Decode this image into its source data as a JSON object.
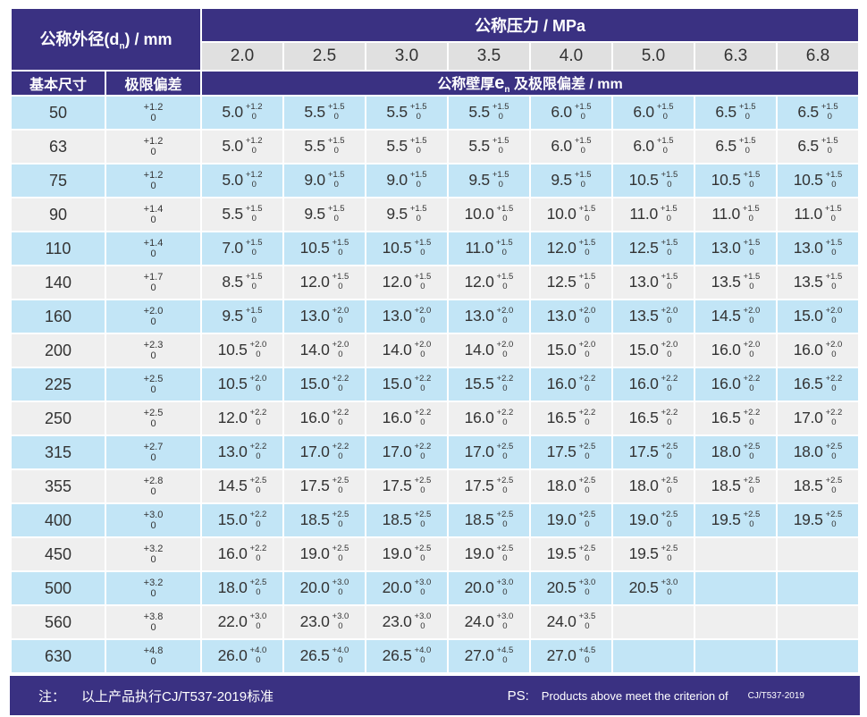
{
  "colors": {
    "header_purple": "#3a3182",
    "row_blue": "#c2e5f6",
    "row_gray": "#efefef",
    "pressure_gray": "#e0e0e0"
  },
  "header": {
    "outer_diameter": {
      "prefix": "公称外径(d",
      "sub": "n",
      "suffix": ") / mm"
    },
    "pressure_title": "公称压力 / MPa",
    "pressure_values": [
      "2.0",
      "2.5",
      "3.0",
      "3.5",
      "4.0",
      "5.0",
      "6.3",
      "6.8"
    ],
    "basic_size": "基本尺寸",
    "tolerance": "极限偏差",
    "wall_thickness": {
      "prefix": "公称壁厚",
      "symbol": "e",
      "sub": "n",
      "suffix": " 及极限偏差 / mm"
    }
  },
  "rows": [
    {
      "dn": "50",
      "tol": [
        "+1.2",
        "0"
      ],
      "cells": [
        [
          "5.0",
          "+1.2",
          "0"
        ],
        [
          "5.5",
          "+1.5",
          "0"
        ],
        [
          "5.5",
          "+1.5",
          "0"
        ],
        [
          "5.5",
          "+1.5",
          "0"
        ],
        [
          "6.0",
          "+1.5",
          "0"
        ],
        [
          "6.0",
          "+1.5",
          "0"
        ],
        [
          "6.5",
          "+1.5",
          "0"
        ],
        [
          "6.5",
          "+1.5",
          "0"
        ]
      ]
    },
    {
      "dn": "63",
      "tol": [
        "+1.2",
        "0"
      ],
      "cells": [
        [
          "5.0",
          "+1.2",
          "0"
        ],
        [
          "5.5",
          "+1.5",
          "0"
        ],
        [
          "5.5",
          "+1.5",
          "0"
        ],
        [
          "5.5",
          "+1.5",
          "0"
        ],
        [
          "6.0",
          "+1.5",
          "0"
        ],
        [
          "6.0",
          "+1.5",
          "0"
        ],
        [
          "6.5",
          "+1.5",
          "0"
        ],
        [
          "6.5",
          "+1.5",
          "0"
        ]
      ]
    },
    {
      "dn": "75",
      "tol": [
        "+1.2",
        "0"
      ],
      "cells": [
        [
          "5.0",
          "+1.2",
          "0"
        ],
        [
          "9.0",
          "+1.5",
          "0"
        ],
        [
          "9.0",
          "+1.5",
          "0"
        ],
        [
          "9.5",
          "+1.5",
          "0"
        ],
        [
          "9.5",
          "+1.5",
          "0"
        ],
        [
          "10.5",
          "+1.5",
          "0"
        ],
        [
          "10.5",
          "+1.5",
          "0"
        ],
        [
          "10.5",
          "+1.5",
          "0"
        ]
      ]
    },
    {
      "dn": "90",
      "tol": [
        "+1.4",
        "0"
      ],
      "cells": [
        [
          "5.5",
          "+1.5",
          "0"
        ],
        [
          "9.5",
          "+1.5",
          "0"
        ],
        [
          "9.5",
          "+1.5",
          "0"
        ],
        [
          "10.0",
          "+1.5",
          "0"
        ],
        [
          "10.0",
          "+1.5",
          "0"
        ],
        [
          "11.0",
          "+1.5",
          "0"
        ],
        [
          "11.0",
          "+1.5",
          "0"
        ],
        [
          "11.0",
          "+1.5",
          "0"
        ]
      ]
    },
    {
      "dn": "110",
      "tol": [
        "+1.4",
        "0"
      ],
      "cells": [
        [
          "7.0",
          "+1.5",
          "0"
        ],
        [
          "10.5",
          "+1.5",
          "0"
        ],
        [
          "10.5",
          "+1.5",
          "0"
        ],
        [
          "11.0",
          "+1.5",
          "0"
        ],
        [
          "12.0",
          "+1.5",
          "0"
        ],
        [
          "12.5",
          "+1.5",
          "0"
        ],
        [
          "13.0",
          "+1.5",
          "0"
        ],
        [
          "13.0",
          "+1.5",
          "0"
        ]
      ]
    },
    {
      "dn": "140",
      "tol": [
        "+1.7",
        "0"
      ],
      "cells": [
        [
          "8.5",
          "+1.5",
          "0"
        ],
        [
          "12.0",
          "+1.5",
          "0"
        ],
        [
          "12.0",
          "+1.5",
          "0"
        ],
        [
          "12.0",
          "+1.5",
          "0"
        ],
        [
          "12.5",
          "+1.5",
          "0"
        ],
        [
          "13.0",
          "+1.5",
          "0"
        ],
        [
          "13.5",
          "+1.5",
          "0"
        ],
        [
          "13.5",
          "+1.5",
          "0"
        ]
      ]
    },
    {
      "dn": "160",
      "tol": [
        "+2.0",
        "0"
      ],
      "cells": [
        [
          "9.5",
          "+1.5",
          "0"
        ],
        [
          "13.0",
          "+2.0",
          "0"
        ],
        [
          "13.0",
          "+2.0",
          "0"
        ],
        [
          "13.0",
          "+2.0",
          "0"
        ],
        [
          "13.0",
          "+2.0",
          "0"
        ],
        [
          "13.5",
          "+2.0",
          "0"
        ],
        [
          "14.5",
          "+2.0",
          "0"
        ],
        [
          "15.0",
          "+2.0",
          "0"
        ]
      ]
    },
    {
      "dn": "200",
      "tol": [
        "+2.3",
        "0"
      ],
      "cells": [
        [
          "10.5",
          "+2.0",
          "0"
        ],
        [
          "14.0",
          "+2.0",
          "0"
        ],
        [
          "14.0",
          "+2.0",
          "0"
        ],
        [
          "14.0",
          "+2.0",
          "0"
        ],
        [
          "15.0",
          "+2.0",
          "0"
        ],
        [
          "15.0",
          "+2.0",
          "0"
        ],
        [
          "16.0",
          "+2.0",
          "0"
        ],
        [
          "16.0",
          "+2.0",
          "0"
        ]
      ]
    },
    {
      "dn": "225",
      "tol": [
        "+2.5",
        "0"
      ],
      "cells": [
        [
          "10.5",
          "+2.0",
          "0"
        ],
        [
          "15.0",
          "+2.2",
          "0"
        ],
        [
          "15.0",
          "+2.2",
          "0"
        ],
        [
          "15.5",
          "+2.2",
          "0"
        ],
        [
          "16.0",
          "+2.2",
          "0"
        ],
        [
          "16.0",
          "+2.2",
          "0"
        ],
        [
          "16.0",
          "+2.2",
          "0"
        ],
        [
          "16.5",
          "+2.2",
          "0"
        ]
      ]
    },
    {
      "dn": "250",
      "tol": [
        "+2.5",
        "0"
      ],
      "cells": [
        [
          "12.0",
          "+2.2",
          "0"
        ],
        [
          "16.0",
          "+2.2",
          "0"
        ],
        [
          "16.0",
          "+2.2",
          "0"
        ],
        [
          "16.0",
          "+2.2",
          "0"
        ],
        [
          "16.5",
          "+2.2",
          "0"
        ],
        [
          "16.5",
          "+2.2",
          "0"
        ],
        [
          "16.5",
          "+2.2",
          "0"
        ],
        [
          "17.0",
          "+2.2",
          "0"
        ]
      ]
    },
    {
      "dn": "315",
      "tol": [
        "+2.7",
        "0"
      ],
      "cells": [
        [
          "13.0",
          "+2.2",
          "0"
        ],
        [
          "17.0",
          "+2.2",
          "0"
        ],
        [
          "17.0",
          "+2.2",
          "0"
        ],
        [
          "17.0",
          "+2.5",
          "0"
        ],
        [
          "17.5",
          "+2.5",
          "0"
        ],
        [
          "17.5",
          "+2.5",
          "0"
        ],
        [
          "18.0",
          "+2.5",
          "0"
        ],
        [
          "18.0",
          "+2.5",
          "0"
        ]
      ]
    },
    {
      "dn": "355",
      "tol": [
        "+2.8",
        "0"
      ],
      "cells": [
        [
          "14.5",
          "+2.5",
          "0"
        ],
        [
          "17.5",
          "+2.5",
          "0"
        ],
        [
          "17.5",
          "+2.5",
          "0"
        ],
        [
          "17.5",
          "+2.5",
          "0"
        ],
        [
          "18.0",
          "+2.5",
          "0"
        ],
        [
          "18.0",
          "+2.5",
          "0"
        ],
        [
          "18.5",
          "+2.5",
          "0"
        ],
        [
          "18.5",
          "+2.5",
          "0"
        ]
      ]
    },
    {
      "dn": "400",
      "tol": [
        "+3.0",
        "0"
      ],
      "cells": [
        [
          "15.0",
          "+2.2",
          "0"
        ],
        [
          "18.5",
          "+2.5",
          "0"
        ],
        [
          "18.5",
          "+2.5",
          "0"
        ],
        [
          "18.5",
          "+2.5",
          "0"
        ],
        [
          "19.0",
          "+2.5",
          "0"
        ],
        [
          "19.0",
          "+2.5",
          "0"
        ],
        [
          "19.5",
          "+2.5",
          "0"
        ],
        [
          "19.5",
          "+2.5",
          "0"
        ]
      ]
    },
    {
      "dn": "450",
      "tol": [
        "+3.2",
        "0"
      ],
      "cells": [
        [
          "16.0",
          "+2.2",
          "0"
        ],
        [
          "19.0",
          "+2.5",
          "0"
        ],
        [
          "19.0",
          "+2.5",
          "0"
        ],
        [
          "19.0",
          "+2.5",
          "0"
        ],
        [
          "19.5",
          "+2.5",
          "0"
        ],
        [
          "19.5",
          "+2.5",
          "0"
        ],
        null,
        null
      ]
    },
    {
      "dn": "500",
      "tol": [
        "+3.2",
        "0"
      ],
      "cells": [
        [
          "18.0",
          "+2.5",
          "0"
        ],
        [
          "20.0",
          "+3.0",
          "0"
        ],
        [
          "20.0",
          "+3.0",
          "0"
        ],
        [
          "20.0",
          "+3.0",
          "0"
        ],
        [
          "20.5",
          "+3.0",
          "0"
        ],
        [
          "20.5",
          "+3.0",
          "0"
        ],
        null,
        null
      ]
    },
    {
      "dn": "560",
      "tol": [
        "+3.8",
        "0"
      ],
      "cells": [
        [
          "22.0",
          "+3.0",
          "0"
        ],
        [
          "23.0",
          "+3.0",
          "0"
        ],
        [
          "23.0",
          "+3.0",
          "0"
        ],
        [
          "24.0",
          "+3.0",
          "0"
        ],
        [
          "24.0",
          "+3.5",
          "0"
        ],
        null,
        null,
        null
      ]
    },
    {
      "dn": "630",
      "tol": [
        "+4.8",
        "0"
      ],
      "cells": [
        [
          "26.0",
          "+4.0",
          "0"
        ],
        [
          "26.5",
          "+4.0",
          "0"
        ],
        [
          "26.5",
          "+4.0",
          "0"
        ],
        [
          "27.0",
          "+4.5",
          "0"
        ],
        [
          "27.0",
          "+4.5",
          "0"
        ],
        null,
        null,
        null
      ]
    }
  ],
  "footer": {
    "note_label": "注：",
    "note_text": "以上产品执行CJ/T537-2019标准",
    "ps_label": "PS:",
    "ps_text": "Products above meet the criterion of",
    "ps_standard": "CJ/T537-2019"
  }
}
